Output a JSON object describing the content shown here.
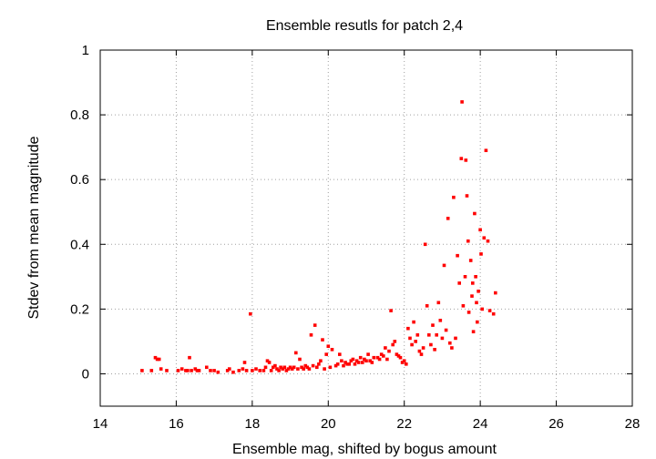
{
  "chart_data": {
    "type": "scatter",
    "title": "Ensemble resutls for patch 2,4",
    "xlabel": "Ensemble mag, shifted by bogus amount",
    "ylabel": "Stdev from mean magnitude",
    "xlim": [
      14,
      28
    ],
    "ylim": [
      -0.1,
      1
    ],
    "xticks": [
      14,
      16,
      18,
      20,
      22,
      24,
      26,
      28
    ],
    "yticks": [
      0,
      0.2,
      0.4,
      0.6,
      0.8,
      1
    ],
    "xtick_labels": [
      "14",
      "16",
      "18",
      "20",
      "22",
      "24",
      "26",
      "28"
    ],
    "ytick_labels": [
      "0",
      "0.2",
      "0.4",
      "0.6",
      "0.8",
      "1"
    ],
    "grid": true,
    "legend": "none",
    "marker_color": "#ff0000",
    "series": [
      {
        "points": [
          [
            15.1,
            0.01
          ],
          [
            15.35,
            0.01
          ],
          [
            15.45,
            0.05
          ],
          [
            15.5,
            0.045
          ],
          [
            15.55,
            0.045
          ],
          [
            15.6,
            0.015
          ],
          [
            15.75,
            0.01
          ],
          [
            16.05,
            0.01
          ],
          [
            16.15,
            0.015
          ],
          [
            16.25,
            0.01
          ],
          [
            16.3,
            0.01
          ],
          [
            16.35,
            0.05
          ],
          [
            16.4,
            0.01
          ],
          [
            16.5,
            0.015
          ],
          [
            16.55,
            0.01
          ],
          [
            16.6,
            0.01
          ],
          [
            16.8,
            0.02
          ],
          [
            16.9,
            0.01
          ],
          [
            17.0,
            0.01
          ],
          [
            17.1,
            0.005
          ],
          [
            17.35,
            0.01
          ],
          [
            17.4,
            0.015
          ],
          [
            17.5,
            0.005
          ],
          [
            17.65,
            0.01
          ],
          [
            17.75,
            0.015
          ],
          [
            17.8,
            0.035
          ],
          [
            17.85,
            0.01
          ],
          [
            17.95,
            0.185
          ],
          [
            18.0,
            0.01
          ],
          [
            18.1,
            0.015
          ],
          [
            18.2,
            0.01
          ],
          [
            18.3,
            0.01
          ],
          [
            18.35,
            0.02
          ],
          [
            18.4,
            0.04
          ],
          [
            18.45,
            0.035
          ],
          [
            18.5,
            0.01
          ],
          [
            18.55,
            0.02
          ],
          [
            18.6,
            0.025
          ],
          [
            18.65,
            0.015
          ],
          [
            18.7,
            0.01
          ],
          [
            18.75,
            0.02
          ],
          [
            18.8,
            0.015
          ],
          [
            18.85,
            0.02
          ],
          [
            18.9,
            0.01
          ],
          [
            18.95,
            0.015
          ],
          [
            19.0,
            0.02
          ],
          [
            19.05,
            0.015
          ],
          [
            19.1,
            0.02
          ],
          [
            19.15,
            0.065
          ],
          [
            19.2,
            0.015
          ],
          [
            19.25,
            0.045
          ],
          [
            19.3,
            0.02
          ],
          [
            19.35,
            0.015
          ],
          [
            19.4,
            0.025
          ],
          [
            19.45,
            0.02
          ],
          [
            19.5,
            0.015
          ],
          [
            19.55,
            0.12
          ],
          [
            19.6,
            0.025
          ],
          [
            19.65,
            0.15
          ],
          [
            19.7,
            0.02
          ],
          [
            19.75,
            0.03
          ],
          [
            19.8,
            0.04
          ],
          [
            19.85,
            0.105
          ],
          [
            19.9,
            0.015
          ],
          [
            19.95,
            0.06
          ],
          [
            20.0,
            0.085
          ],
          [
            20.05,
            0.02
          ],
          [
            20.1,
            0.075
          ],
          [
            20.2,
            0.025
          ],
          [
            20.25,
            0.03
          ],
          [
            20.3,
            0.06
          ],
          [
            20.35,
            0.04
          ],
          [
            20.4,
            0.025
          ],
          [
            20.45,
            0.035
          ],
          [
            20.5,
            0.03
          ],
          [
            20.55,
            0.03
          ],
          [
            20.6,
            0.04
          ],
          [
            20.65,
            0.045
          ],
          [
            20.7,
            0.03
          ],
          [
            20.75,
            0.04
          ],
          [
            20.8,
            0.035
          ],
          [
            20.85,
            0.05
          ],
          [
            20.9,
            0.035
          ],
          [
            20.95,
            0.045
          ],
          [
            21.0,
            0.04
          ],
          [
            21.05,
            0.06
          ],
          [
            21.1,
            0.04
          ],
          [
            21.15,
            0.035
          ],
          [
            21.2,
            0.05
          ],
          [
            21.3,
            0.05
          ],
          [
            21.35,
            0.045
          ],
          [
            21.4,
            0.06
          ],
          [
            21.45,
            0.055
          ],
          [
            21.5,
            0.08
          ],
          [
            21.55,
            0.045
          ],
          [
            21.6,
            0.07
          ],
          [
            21.65,
            0.195
          ],
          [
            21.7,
            0.09
          ],
          [
            21.75,
            0.1
          ],
          [
            21.8,
            0.06
          ],
          [
            21.85,
            0.055
          ],
          [
            21.9,
            0.05
          ],
          [
            21.95,
            0.035
          ],
          [
            22.0,
            0.04
          ],
          [
            22.05,
            0.03
          ],
          [
            22.1,
            0.14
          ],
          [
            22.15,
            0.11
          ],
          [
            22.2,
            0.09
          ],
          [
            22.25,
            0.16
          ],
          [
            22.3,
            0.1
          ],
          [
            22.35,
            0.12
          ],
          [
            22.4,
            0.07
          ],
          [
            22.45,
            0.06
          ],
          [
            22.5,
            0.08
          ],
          [
            22.55,
            0.4
          ],
          [
            22.6,
            0.21
          ],
          [
            22.65,
            0.12
          ],
          [
            22.7,
            0.09
          ],
          [
            22.75,
            0.15
          ],
          [
            22.8,
            0.075
          ],
          [
            22.85,
            0.12
          ],
          [
            22.9,
            0.22
          ],
          [
            22.95,
            0.165
          ],
          [
            23.0,
            0.11
          ],
          [
            23.05,
            0.335
          ],
          [
            23.1,
            0.135
          ],
          [
            23.15,
            0.48
          ],
          [
            23.2,
            0.095
          ],
          [
            23.25,
            0.08
          ],
          [
            23.3,
            0.545
          ],
          [
            23.35,
            0.11
          ],
          [
            23.4,
            0.365
          ],
          [
            23.45,
            0.28
          ],
          [
            23.5,
            0.665
          ],
          [
            23.52,
            0.84
          ],
          [
            23.55,
            0.21
          ],
          [
            23.6,
            0.3
          ],
          [
            23.62,
            0.66
          ],
          [
            23.65,
            0.55
          ],
          [
            23.68,
            0.41
          ],
          [
            23.7,
            0.19
          ],
          [
            23.75,
            0.35
          ],
          [
            23.78,
            0.24
          ],
          [
            23.8,
            0.28
          ],
          [
            23.82,
            0.13
          ],
          [
            23.85,
            0.495
          ],
          [
            23.88,
            0.3
          ],
          [
            23.9,
            0.22
          ],
          [
            23.92,
            0.16
          ],
          [
            23.95,
            0.255
          ],
          [
            24.0,
            0.445
          ],
          [
            24.02,
            0.37
          ],
          [
            24.05,
            0.2
          ],
          [
            24.1,
            0.42
          ],
          [
            24.15,
            0.69
          ],
          [
            24.2,
            0.41
          ],
          [
            24.25,
            0.195
          ],
          [
            24.35,
            0.185
          ],
          [
            24.4,
            0.25
          ]
        ]
      }
    ]
  }
}
